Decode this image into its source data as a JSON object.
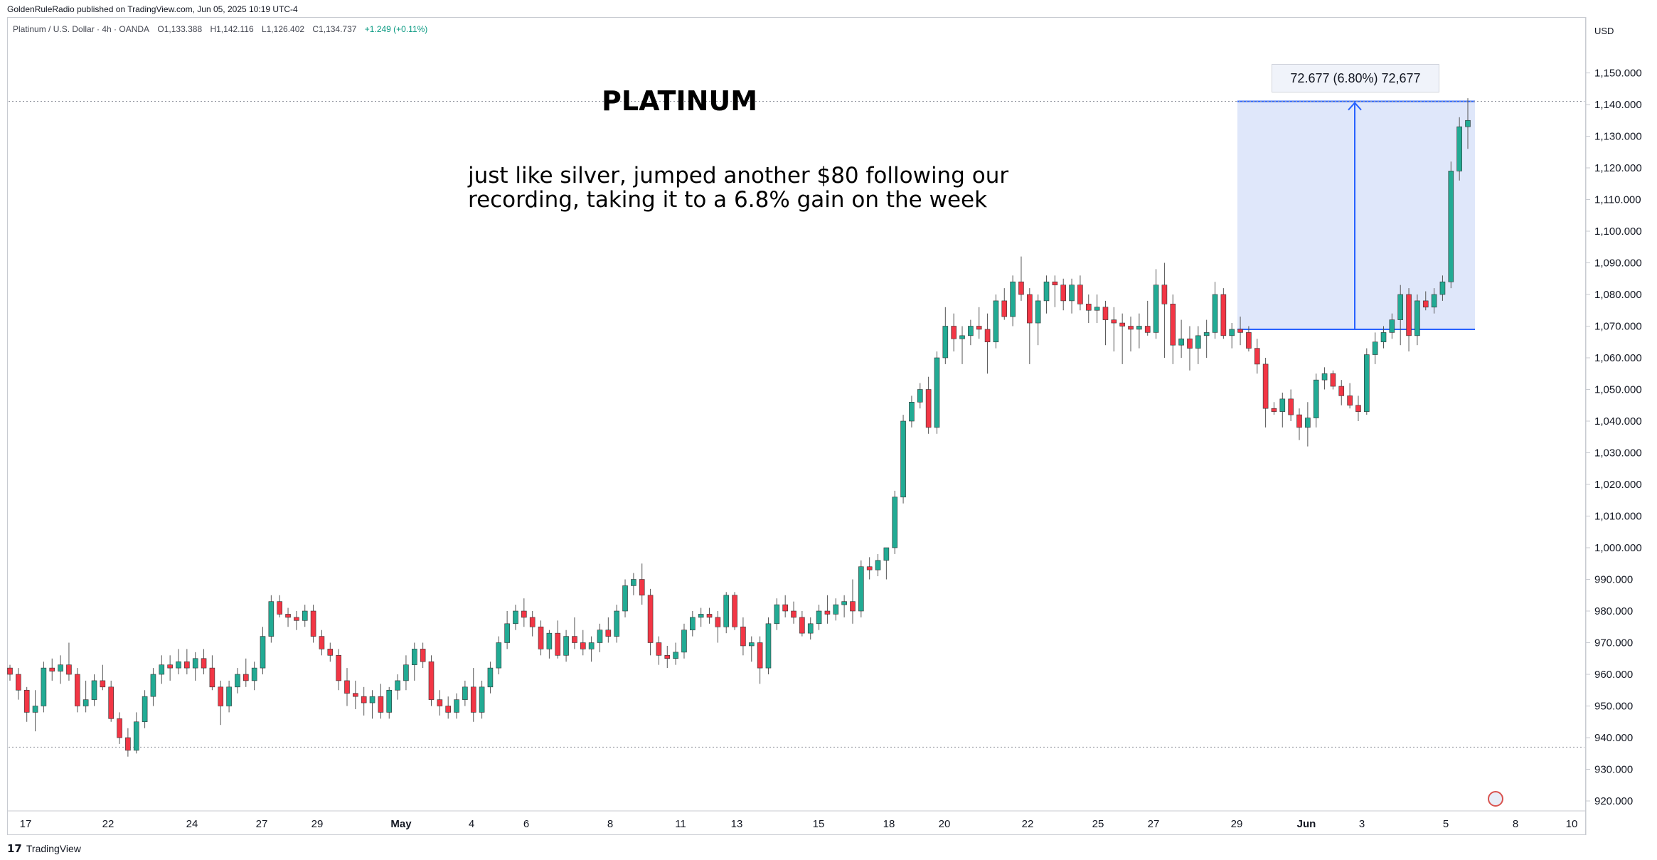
{
  "publisher_line": "GoldenRuleRadio published on TradingView.com, Jun 05, 2025 10:19 UTC-4",
  "legend": {
    "symbol": "Platinum / U.S. Dollar · 4h · OANDA",
    "open": "O1,133.388",
    "high": "H1,142.116",
    "low": "L1,126.402",
    "close": "C1,134.737",
    "change": "+1.249 (+0.11%)"
  },
  "currency": "USD",
  "annotation_title": "PLATINUM",
  "annotation_text_line1": "just like silver, jumped another $80 following our",
  "annotation_text_line2": "recording, taking it to a 6.8% gain on the week",
  "measure_label": "72.677 (6.80%) 72,677",
  "branding": "TradingView",
  "colors": {
    "up": "#22ab94",
    "down": "#f23645",
    "measure_fill": "#dde6fa",
    "measure_line": "#2962ff"
  },
  "chart_data": {
    "type": "candlestick",
    "interval": "4h",
    "ylim": [
      915,
      1160
    ],
    "y_ticks": [
      "920.000",
      "930.000",
      "940.000",
      "950.000",
      "960.000",
      "970.000",
      "980.000",
      "990.000",
      "1,000.000",
      "1,010.000",
      "1,020.000",
      "1,030.000",
      "1,040.000",
      "1,050.000",
      "1,060.000",
      "1,070.000",
      "1,080.000",
      "1,090.000",
      "1,100.000",
      "1,110.000",
      "1,120.000",
      "1,130.000",
      "1,140.000",
      "1,150.000"
    ],
    "x_ticks": [
      "17",
      "22",
      "24",
      "27",
      "29",
      "May",
      "4",
      "6",
      "8",
      "11",
      "13",
      "15",
      "18",
      "20",
      "22",
      "25",
      "27",
      "29",
      "Jun",
      "3",
      "5",
      "8",
      "10"
    ],
    "measure": {
      "from": 1069,
      "to": 1141,
      "change": 72.677,
      "percent": 6.8
    },
    "ohlc": [
      [
        962,
        963,
        958,
        960
      ],
      [
        960,
        962,
        952,
        955
      ],
      [
        955,
        956,
        945,
        948
      ],
      [
        948,
        955,
        942,
        950
      ],
      [
        950,
        964,
        948,
        962
      ],
      [
        962,
        965,
        958,
        961
      ],
      [
        961,
        966,
        957,
        963
      ],
      [
        963,
        970,
        958,
        960
      ],
      [
        960,
        962,
        948,
        950
      ],
      [
        950,
        958,
        948,
        952
      ],
      [
        952,
        960,
        950,
        958
      ],
      [
        958,
        963,
        955,
        956
      ],
      [
        956,
        958,
        945,
        946
      ],
      [
        946,
        948,
        938,
        940
      ],
      [
        940,
        943,
        934,
        936
      ],
      [
        936,
        948,
        935,
        945
      ],
      [
        945,
        955,
        943,
        953
      ],
      [
        953,
        962,
        950,
        960
      ],
      [
        960,
        966,
        957,
        963
      ],
      [
        963,
        966,
        958,
        962
      ],
      [
        962,
        968,
        960,
        964
      ],
      [
        964,
        968,
        960,
        962
      ],
      [
        962,
        967,
        958,
        965
      ],
      [
        965,
        968,
        960,
        962
      ],
      [
        962,
        966,
        955,
        956
      ],
      [
        956,
        958,
        944,
        950
      ],
      [
        950,
        958,
        948,
        956
      ],
      [
        956,
        962,
        954,
        960
      ],
      [
        960,
        965,
        956,
        958
      ],
      [
        958,
        964,
        955,
        962
      ],
      [
        962,
        975,
        960,
        972
      ],
      [
        972,
        985,
        970,
        983
      ],
      [
        983,
        985,
        978,
        979
      ],
      [
        979,
        981,
        975,
        978
      ],
      [
        978,
        980,
        974,
        977
      ],
      [
        977,
        982,
        975,
        980
      ],
      [
        980,
        982,
        970,
        972
      ],
      [
        972,
        974,
        966,
        968
      ],
      [
        968,
        970,
        964,
        966
      ],
      [
        966,
        968,
        955,
        958
      ],
      [
        958,
        962,
        950,
        954
      ],
      [
        954,
        958,
        949,
        953
      ],
      [
        953,
        956,
        947,
        951
      ],
      [
        951,
        955,
        946,
        953
      ],
      [
        953,
        957,
        946,
        948
      ],
      [
        948,
        956,
        946,
        955
      ],
      [
        955,
        960,
        952,
        958
      ],
      [
        958,
        966,
        955,
        963
      ],
      [
        963,
        970,
        958,
        968
      ],
      [
        968,
        970,
        962,
        964
      ],
      [
        964,
        966,
        950,
        952
      ],
      [
        952,
        955,
        947,
        950
      ],
      [
        950,
        953,
        946,
        948
      ],
      [
        948,
        954,
        946,
        952
      ],
      [
        952,
        958,
        950,
        956
      ],
      [
        956,
        962,
        945,
        948
      ],
      [
        948,
        958,
        946,
        956
      ],
      [
        956,
        964,
        954,
        962
      ],
      [
        962,
        972,
        960,
        970
      ],
      [
        970,
        980,
        968,
        976
      ],
      [
        976,
        982,
        974,
        980
      ],
      [
        980,
        984,
        975,
        978
      ],
      [
        978,
        980,
        972,
        975
      ],
      [
        975,
        977,
        966,
        968
      ],
      [
        968,
        974,
        965,
        973
      ],
      [
        973,
        977,
        965,
        966
      ],
      [
        966,
        974,
        964,
        972
      ],
      [
        972,
        978,
        968,
        970
      ],
      [
        970,
        974,
        966,
        968
      ],
      [
        968,
        972,
        964,
        970
      ],
      [
        970,
        976,
        967,
        974
      ],
      [
        974,
        978,
        970,
        972
      ],
      [
        972,
        982,
        970,
        980
      ],
      [
        980,
        990,
        978,
        988
      ],
      [
        988,
        992,
        985,
        990
      ],
      [
        990,
        995,
        982,
        985
      ],
      [
        985,
        987,
        966,
        970
      ],
      [
        970,
        972,
        963,
        966
      ],
      [
        966,
        969,
        962,
        965
      ],
      [
        965,
        970,
        963,
        967
      ],
      [
        967,
        976,
        965,
        974
      ],
      [
        974,
        980,
        972,
        978
      ],
      [
        978,
        981,
        975,
        979
      ],
      [
        979,
        981,
        976,
        978
      ],
      [
        978,
        980,
        970,
        975
      ],
      [
        975,
        986,
        973,
        985
      ],
      [
        985,
        986,
        974,
        975
      ],
      [
        975,
        978,
        966,
        969
      ],
      [
        969,
        972,
        964,
        970
      ],
      [
        970,
        972,
        957,
        962
      ],
      [
        962,
        978,
        960,
        976
      ],
      [
        976,
        984,
        974,
        982
      ],
      [
        982,
        985,
        978,
        980
      ],
      [
        980,
        983,
        976,
        978
      ],
      [
        978,
        980,
        972,
        973
      ],
      [
        973,
        978,
        971,
        976
      ],
      [
        976,
        982,
        974,
        980
      ],
      [
        980,
        985,
        976,
        979
      ],
      [
        979,
        984,
        977,
        982
      ],
      [
        982,
        985,
        978,
        983
      ],
      [
        983,
        990,
        976,
        980
      ],
      [
        980,
        996,
        978,
        994
      ],
      [
        994,
        997,
        990,
        993
      ],
      [
        993,
        998,
        991,
        996
      ],
      [
        996,
        1000,
        990,
        1000
      ],
      [
        1000,
        1018,
        998,
        1016
      ],
      [
        1016,
        1042,
        1014,
        1040
      ],
      [
        1040,
        1048,
        1038,
        1046
      ],
      [
        1046,
        1052,
        1044,
        1050
      ],
      [
        1050,
        1054,
        1036,
        1038
      ],
      [
        1038,
        1062,
        1036,
        1060
      ],
      [
        1060,
        1076,
        1058,
        1070
      ],
      [
        1070,
        1074,
        1062,
        1066
      ],
      [
        1066,
        1070,
        1058,
        1067
      ],
      [
        1067,
        1072,
        1064,
        1070
      ],
      [
        1070,
        1076,
        1066,
        1069
      ],
      [
        1069,
        1074,
        1055,
        1065
      ],
      [
        1065,
        1080,
        1063,
        1078
      ],
      [
        1078,
        1082,
        1072,
        1073
      ],
      [
        1073,
        1086,
        1070,
        1084
      ],
      [
        1084,
        1092,
        1078,
        1080
      ],
      [
        1080,
        1082,
        1058,
        1071
      ],
      [
        1071,
        1080,
        1064,
        1078
      ],
      [
        1078,
        1086,
        1074,
        1084
      ],
      [
        1084,
        1086,
        1076,
        1083
      ],
      [
        1083,
        1085,
        1075,
        1078
      ],
      [
        1078,
        1085,
        1074,
        1083
      ],
      [
        1083,
        1086,
        1075,
        1077
      ],
      [
        1077,
        1080,
        1071,
        1075
      ],
      [
        1075,
        1080,
        1071,
        1076
      ],
      [
        1076,
        1078,
        1064,
        1072
      ],
      [
        1072,
        1076,
        1062,
        1071
      ],
      [
        1071,
        1074,
        1058,
        1070
      ],
      [
        1070,
        1073,
        1062,
        1069
      ],
      [
        1069,
        1074,
        1063,
        1070
      ],
      [
        1070,
        1078,
        1067,
        1068
      ],
      [
        1068,
        1088,
        1066,
        1083
      ],
      [
        1083,
        1090,
        1060,
        1077
      ],
      [
        1077,
        1080,
        1058,
        1064
      ],
      [
        1064,
        1072,
        1060,
        1066
      ],
      [
        1066,
        1070,
        1056,
        1063
      ],
      [
        1063,
        1070,
        1058,
        1067
      ],
      [
        1067,
        1072,
        1060,
        1068
      ],
      [
        1068,
        1084,
        1066,
        1080
      ],
      [
        1080,
        1082,
        1066,
        1067
      ],
      [
        1067,
        1071,
        1063,
        1069
      ],
      [
        1069,
        1073,
        1064,
        1068
      ],
      [
        1068,
        1070,
        1062,
        1063
      ],
      [
        1063,
        1066,
        1055,
        1058
      ],
      [
        1058,
        1060,
        1038,
        1044
      ],
      [
        1044,
        1046,
        1042,
        1043
      ],
      [
        1043,
        1049,
        1038,
        1047
      ],
      [
        1047,
        1050,
        1040,
        1042
      ],
      [
        1042,
        1044,
        1034,
        1038
      ],
      [
        1038,
        1046,
        1032,
        1041
      ],
      [
        1041,
        1055,
        1038,
        1053
      ],
      [
        1053,
        1057,
        1050,
        1055
      ],
      [
        1055,
        1056,
        1050,
        1051
      ],
      [
        1051,
        1053,
        1045,
        1048
      ],
      [
        1048,
        1052,
        1044,
        1045
      ],
      [
        1045,
        1048,
        1040,
        1043
      ],
      [
        1043,
        1063,
        1042,
        1061
      ],
      [
        1061,
        1068,
        1058,
        1065
      ],
      [
        1065,
        1070,
        1063,
        1068
      ],
      [
        1068,
        1074,
        1066,
        1072
      ],
      [
        1072,
        1083,
        1064,
        1080
      ],
      [
        1080,
        1082,
        1062,
        1067
      ],
      [
        1067,
        1080,
        1064,
        1078
      ],
      [
        1078,
        1081,
        1075,
        1076
      ],
      [
        1076,
        1082,
        1074,
        1080
      ],
      [
        1080,
        1086,
        1078,
        1084
      ],
      [
        1084,
        1122,
        1082,
        1119
      ],
      [
        1119,
        1136,
        1116,
        1133
      ],
      [
        1133,
        1142,
        1126,
        1135
      ]
    ]
  }
}
